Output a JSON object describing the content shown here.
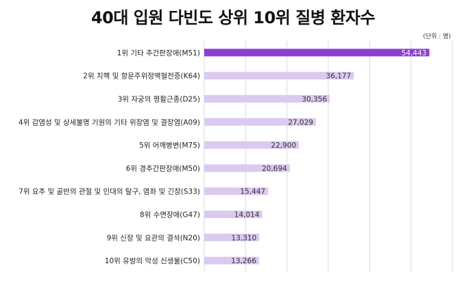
{
  "title": "40대 입원 다빈도 상위 10위 질병 환자수",
  "unit_label": "(단위 : 명)",
  "colors": {
    "top_bar": "#8a3fd1",
    "bar": "#dcc9f0",
    "grid": "#d9d9d9"
  },
  "chart_data": {
    "type": "bar",
    "orientation": "horizontal",
    "title": "40대 입원 다빈도 상위 10위 질병 환자수",
    "xlim": [
      0,
      60000
    ],
    "grid": true,
    "categories": [
      "1위 기타 추간판장애(M51)",
      "2위 치핵 및 항문주위정맥혈전증(K64)",
      "3위 자궁의 평활근종(D25)",
      "4위 감염성 및 상세불명 기원의 기타 위장염 및 결장염(A09)",
      "5위 어깨병변(M75)",
      "6위 경추간판장애(M50)",
      "7위 요추 및 골반의 관절 및 인대의 탈구, 염좌 및 긴장(S33)",
      "8위 수면장애(G47)",
      "9위 신장 및 요관의 결석(N20)",
      "10위 유방의 악성 신생물(C50)"
    ],
    "values": [
      54443,
      36177,
      30356,
      27029,
      22900,
      20694,
      15447,
      14014,
      13310,
      13266
    ],
    "value_labels": [
      "54,443",
      "36,177",
      "30,356",
      "27,029",
      "22,900",
      "20,694",
      "15,447",
      "14,014",
      "13,310",
      "13,266"
    ]
  }
}
